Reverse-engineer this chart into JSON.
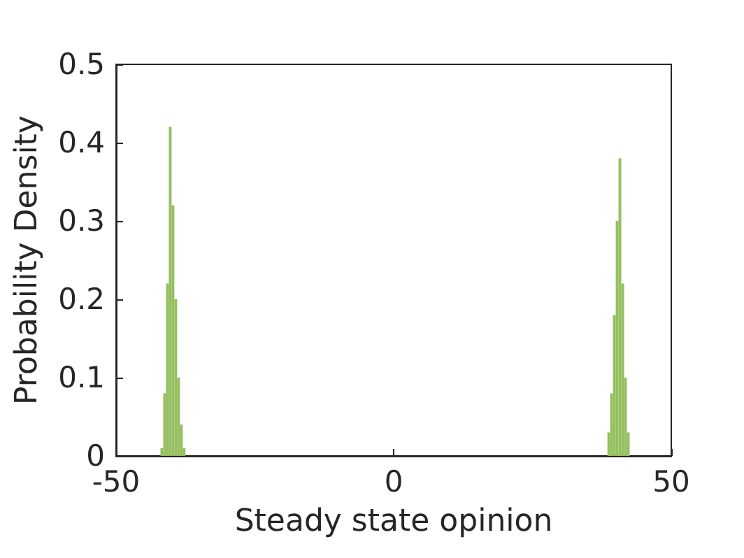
{
  "chart_data": {
    "type": "histogram",
    "xlabel": "Steady state opinion",
    "ylabel": "Probability Density",
    "bins": [
      -42,
      -41.5,
      -41,
      -40.5,
      -40,
      -39.5,
      -39,
      -38.5,
      -38,
      -37.5,
      38.5,
      39,
      39.5,
      40,
      40.5,
      41,
      41.5,
      42,
      42.5
    ],
    "values": [
      0.01,
      0.08,
      0.22,
      0.42,
      0.32,
      0.2,
      0.1,
      0.04,
      0.01,
      0,
      0.03,
      0.08,
      0.18,
      0.3,
      0.38,
      0.22,
      0.1,
      0.03
    ],
    "color": "#95bf5f",
    "xlim": [
      -50,
      50
    ],
    "xticks": [
      -50,
      0,
      50
    ],
    "ylim": [
      0,
      0.5
    ],
    "yticks": [
      0,
      0.1,
      0.2,
      0.3,
      0.4,
      0.5
    ],
    "grid": false
  }
}
